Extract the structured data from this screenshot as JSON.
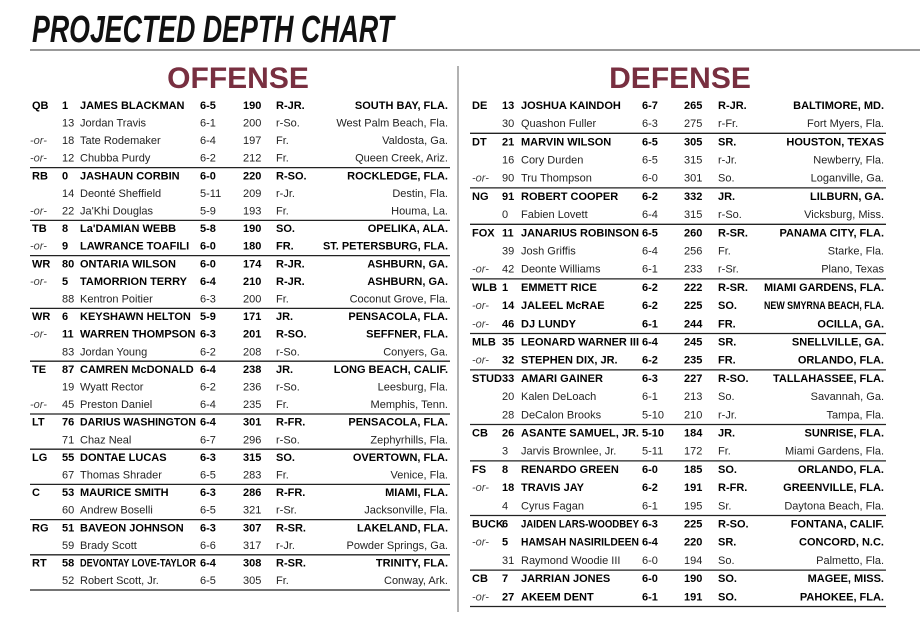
{
  "title": "PROJECTED DEPTH CHART",
  "offense": {
    "heading": "OFFENSE",
    "groups": [
      {
        "position": "QB",
        "players": [
          {
            "number": "1",
            "name": "JAMES BLACKMAN",
            "height": "6-5",
            "weight": "190",
            "class": "R-JR.",
            "hometown": "SOUTH BAY, FLA."
          },
          {
            "number": "13",
            "name": "Jordan Travis",
            "height": "6-1",
            "weight": "200",
            "class": "r-So.",
            "hometown": "West Palm Beach, Fla."
          },
          {
            "tag": "-or-",
            "number": "18",
            "name": "Tate Rodemaker",
            "height": "6-4",
            "weight": "197",
            "class": "Fr.",
            "hometown": "Valdosta, Ga."
          },
          {
            "tag": "-or-",
            "number": "12",
            "name": "Chubba Purdy",
            "height": "6-2",
            "weight": "212",
            "class": "Fr.",
            "hometown": "Queen Creek, Ariz."
          }
        ]
      },
      {
        "position": "RB",
        "players": [
          {
            "number": "0",
            "name": "JASHAUN CORBIN",
            "height": "6-0",
            "weight": "220",
            "class": "R-SO.",
            "hometown": "ROCKLEDGE, FLA."
          },
          {
            "number": "14",
            "name": "Deonté Sheffield",
            "height": "5-11",
            "weight": "209",
            "class": "r-Jr.",
            "hometown": "Destin, Fla."
          },
          {
            "tag": "-or-",
            "number": "22",
            "name": "Ja'Khi Douglas",
            "height": "5-9",
            "weight": "193",
            "class": "Fr.",
            "hometown": "Houma, La."
          }
        ]
      },
      {
        "position": "TB",
        "players": [
          {
            "number": "8",
            "name": "La'DAMIAN WEBB",
            "height": "5-8",
            "weight": "190",
            "class": "SO.",
            "hometown": "OPELIKA, ALA."
          },
          {
            "tag": "-or-",
            "number": "9",
            "name": "LAWRANCE TOAFILI",
            "height": "6-0",
            "weight": "180",
            "class": "FR.",
            "hometown": "ST. PETERSBURG, FLA."
          }
        ]
      },
      {
        "position": "WR",
        "players": [
          {
            "number": "80",
            "name": "ONTARIA WILSON",
            "height": "6-0",
            "weight": "174",
            "class": "R-JR.",
            "hometown": "ASHBURN, GA."
          },
          {
            "tag": "-or-",
            "number": "5",
            "name": "TAMORRION TERRY",
            "height": "6-4",
            "weight": "210",
            "class": "R-JR.",
            "hometown": "ASHBURN, GA."
          },
          {
            "number": "88",
            "name": "Kentron Poitier",
            "height": "6-3",
            "weight": "200",
            "class": "Fr.",
            "hometown": "Coconut Grove, Fla."
          }
        ]
      },
      {
        "position": "WR",
        "players": [
          {
            "number": "6",
            "name": "KEYSHAWN HELTON",
            "height": "5-9",
            "weight": "171",
            "class": "JR.",
            "hometown": "PENSACOLA, FLA."
          },
          {
            "tag": "-or-",
            "number": "11",
            "name": "WARREN THOMPSON",
            "height": "6-3",
            "weight": "201",
            "class": "R-SO.",
            "hometown": "SEFFNER, FLA."
          },
          {
            "number": "83",
            "name": "Jordan Young",
            "height": "6-2",
            "weight": "208",
            "class": "r-So.",
            "hometown": "Conyers, Ga."
          }
        ]
      },
      {
        "position": "TE",
        "players": [
          {
            "number": "87",
            "name": "CAMREN McDONALD",
            "height": "6-4",
            "weight": "238",
            "class": "JR.",
            "hometown": "LONG BEACH, CALIF."
          },
          {
            "number": "19",
            "name": "Wyatt Rector",
            "height": "6-2",
            "weight": "236",
            "class": "r-So.",
            "hometown": "Leesburg, Fla."
          },
          {
            "tag": "-or-",
            "number": "45",
            "name": "Preston Daniel",
            "height": "6-4",
            "weight": "235",
            "class": "Fr.",
            "hometown": "Memphis, Tenn."
          }
        ]
      },
      {
        "position": "LT",
        "players": [
          {
            "number": "76",
            "name": "DARIUS WASHINGTON",
            "height": "6-4",
            "weight": "301",
            "class": "R-FR.",
            "hometown": "PENSACOLA, FLA."
          },
          {
            "number": "71",
            "name": "Chaz Neal",
            "height": "6-7",
            "weight": "296",
            "class": "r-So.",
            "hometown": "Zephyrhills, Fla."
          }
        ]
      },
      {
        "position": "LG",
        "players": [
          {
            "number": "55",
            "name": "DONTAE LUCAS",
            "height": "6-3",
            "weight": "315",
            "class": "SO.",
            "hometown": "OVERTOWN, FLA."
          },
          {
            "number": "67",
            "name": "Thomas Shrader",
            "height": "6-5",
            "weight": "283",
            "class": "Fr.",
            "hometown": "Venice, Fla."
          }
        ]
      },
      {
        "position": "C",
        "players": [
          {
            "number": "53",
            "name": "MAURICE SMITH",
            "height": "6-3",
            "weight": "286",
            "class": "R-FR.",
            "hometown": "MIAMI, FLA."
          },
          {
            "number": "60",
            "name": "Andrew Boselli",
            "height": "6-5",
            "weight": "321",
            "class": "r-Sr.",
            "hometown": "Jacksonville, Fla."
          }
        ]
      },
      {
        "position": "RG",
        "players": [
          {
            "number": "51",
            "name": "BAVEON JOHNSON",
            "height": "6-3",
            "weight": "307",
            "class": "R-SR.",
            "hometown": "LAKELAND, FLA."
          },
          {
            "number": "59",
            "name": "Brady Scott",
            "height": "6-6",
            "weight": "317",
            "class": "r-Jr.",
            "hometown": "Powder Springs, Ga."
          }
        ]
      },
      {
        "position": "RT",
        "players": [
          {
            "number": "58",
            "name": "DEVONTAY LOVE-TAYLOR",
            "height": "6-4",
            "weight": "308",
            "class": "R-SR.",
            "hometown": "TRINITY, FLA."
          },
          {
            "number": "52",
            "name": "Robert Scott, Jr.",
            "height": "6-5",
            "weight": "305",
            "class": "Fr.",
            "hometown": "Conway, Ark."
          }
        ]
      }
    ]
  },
  "defense": {
    "heading": "DEFENSE",
    "groups": [
      {
        "position": "DE",
        "players": [
          {
            "number": "13",
            "name": "JOSHUA KAINDOH",
            "height": "6-7",
            "weight": "265",
            "class": "R-JR.",
            "hometown": "BALTIMORE, MD."
          },
          {
            "number": "30",
            "name": "Quashon Fuller",
            "height": "6-3",
            "weight": "275",
            "class": "r-Fr.",
            "hometown": "Fort Myers, Fla."
          }
        ]
      },
      {
        "position": "DT",
        "players": [
          {
            "number": "21",
            "name": "MARVIN WILSON",
            "height": "6-5",
            "weight": "305",
            "class": "SR.",
            "hometown": "HOUSTON, TEXAS"
          },
          {
            "number": "16",
            "name": "Cory Durden",
            "height": "6-5",
            "weight": "315",
            "class": "r-Jr.",
            "hometown": "Newberry, Fla."
          },
          {
            "tag": "-or-",
            "number": "90",
            "name": "Tru Thompson",
            "height": "6-0",
            "weight": "301",
            "class": "So.",
            "hometown": "Loganville, Ga."
          }
        ]
      },
      {
        "position": "NG",
        "players": [
          {
            "number": "91",
            "name": "ROBERT COOPER",
            "height": "6-2",
            "weight": "332",
            "class": "JR.",
            "hometown": "LILBURN, GA."
          },
          {
            "number": "0",
            "name": "Fabien Lovett",
            "height": "6-4",
            "weight": "315",
            "class": "r-So.",
            "hometown": "Vicksburg, Miss."
          }
        ]
      },
      {
        "position": "FOX",
        "players": [
          {
            "number": "11",
            "name": "JANARIUS ROBINSON",
            "height": "6-5",
            "weight": "260",
            "class": "R-SR.",
            "hometown": "PANAMA CITY, FLA."
          },
          {
            "number": "39",
            "name": "Josh Griffis",
            "height": "6-4",
            "weight": "256",
            "class": "Fr.",
            "hometown": "Starke, Fla."
          },
          {
            "tag": "-or-",
            "number": "42",
            "name": "Deonte Williams",
            "height": "6-1",
            "weight": "233",
            "class": "r-Sr.",
            "hometown": "Plano, Texas"
          }
        ]
      },
      {
        "position": "WLB",
        "players": [
          {
            "number": "1",
            "name": "EMMETT RICE",
            "height": "6-2",
            "weight": "222",
            "class": "R-SR.",
            "hometown": "MIAMI GARDENS, FLA."
          },
          {
            "tag": "-or-",
            "number": "14",
            "name": "JALEEL McRAE",
            "height": "6-2",
            "weight": "225",
            "class": "SO.",
            "hometown": "NEW SMYRNA BEACH, FLA."
          },
          {
            "tag": "-or-",
            "number": "46",
            "name": "DJ LUNDY",
            "height": "6-1",
            "weight": "244",
            "class": "FR.",
            "hometown": "OCILLA, GA."
          }
        ]
      },
      {
        "position": "MLB",
        "players": [
          {
            "number": "35",
            "name": "LEONARD WARNER III",
            "height": "6-4",
            "weight": "245",
            "class": "SR.",
            "hometown": "SNELLVILLE, GA."
          },
          {
            "tag": "-or-",
            "number": "32",
            "name": "STEPHEN DIX, JR.",
            "height": "6-2",
            "weight": "235",
            "class": "FR.",
            "hometown": "ORLANDO, FLA."
          }
        ]
      },
      {
        "position": "STUD",
        "players": [
          {
            "number": "33",
            "name": "AMARI GAINER",
            "height": "6-3",
            "weight": "227",
            "class": "R-SO.",
            "hometown": "TALLAHASSEE, FLA."
          },
          {
            "number": "20",
            "name": "Kalen DeLoach",
            "height": "6-1",
            "weight": "213",
            "class": "So.",
            "hometown": "Savannah, Ga."
          },
          {
            "number": "28",
            "name": "DeCalon Brooks",
            "height": "5-10",
            "weight": "210",
            "class": "r-Jr.",
            "hometown": "Tampa, Fla."
          }
        ]
      },
      {
        "position": "CB",
        "players": [
          {
            "number": "26",
            "name": "ASANTE SAMUEL, JR.",
            "height": "5-10",
            "weight": "184",
            "class": "JR.",
            "hometown": "SUNRISE, FLA."
          },
          {
            "number": "3",
            "name": "Jarvis Brownlee, Jr.",
            "height": "5-11",
            "weight": "172",
            "class": "Fr.",
            "hometown": "Miami Gardens, Fla."
          }
        ]
      },
      {
        "position": "FS",
        "players": [
          {
            "number": "8",
            "name": "RENARDO GREEN",
            "height": "6-0",
            "weight": "185",
            "class": "SO.",
            "hometown": "ORLANDO, FLA."
          },
          {
            "tag": "-or-",
            "number": "18",
            "name": "TRAVIS JAY",
            "height": "6-2",
            "weight": "191",
            "class": "R-FR.",
            "hometown": "GREENVILLE, FLA."
          },
          {
            "number": "4",
            "name": "Cyrus Fagan",
            "height": "6-1",
            "weight": "195",
            "class": "Sr.",
            "hometown": "Daytona Beach, Fla."
          }
        ]
      },
      {
        "position": "BUCK",
        "players": [
          {
            "number": "6",
            "name": "JAIDEN LARS-WOODBEY",
            "height": "6-3",
            "weight": "225",
            "class": "R-SO.",
            "hometown": "FONTANA, CALIF."
          },
          {
            "tag": "-or-",
            "number": "5",
            "name": "HAMSAH NASIRILDEEN",
            "height": "6-4",
            "weight": "220",
            "class": "SR.",
            "hometown": "CONCORD, N.C."
          },
          {
            "number": "31",
            "name": "Raymond Woodie III",
            "height": "6-0",
            "weight": "194",
            "class": "So.",
            "hometown": "Palmetto, Fla."
          }
        ]
      },
      {
        "position": "CB",
        "players": [
          {
            "number": "7",
            "name": "JARRIAN JONES",
            "height": "6-0",
            "weight": "190",
            "class": "SO.",
            "hometown": "MAGEE, MISS."
          },
          {
            "tag": "-or-",
            "number": "27",
            "name": "AKEEM DENT",
            "height": "6-1",
            "weight": "191",
            "class": "SO.",
            "hometown": "PAHOKEE, FLA."
          }
        ]
      }
    ]
  }
}
